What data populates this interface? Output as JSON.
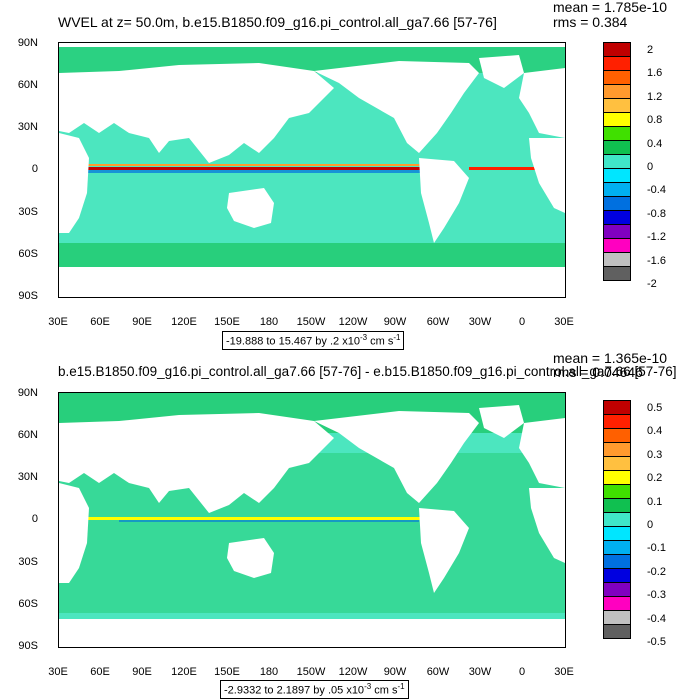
{
  "panel1": {
    "title": "WVEL at z=  50.0m, b.e15.B1850.f09_g16.pi_control.all_ga7.66 [57-76]",
    "mean": "mean = 1.785e-10",
    "rms": "rms = 0.384",
    "range": "-19.888 to 15.467 by .2 x10",
    "range_exp": "-3",
    "range_unit": " cm s",
    "range_unit_exp": "-1",
    "colorbar_labels": [
      "2",
      "1.6",
      "1.2",
      "0.8",
      "0.4",
      "0",
      "-0.4",
      "-0.8",
      "-1.2",
      "-1.6",
      "-2"
    ]
  },
  "panel2": {
    "title": "b.e15.B1850.f09_g16.pi_control.all_ga7.66 [57-76] - e.b15.B1850.f09_g16.pi_control.all_ga7.66 [57-76]",
    "mean": "mean = 1.365e-10",
    "rms": "rms = 0.04646",
    "range": "-2.9332 to 2.1897 by .05 x10",
    "range_exp": "-3",
    "range_unit": " cm s",
    "range_unit_exp": "-1",
    "colorbar_labels": [
      "0.5",
      "0.4",
      "0.3",
      "0.2",
      "0.1",
      "0",
      "-0.1",
      "-0.2",
      "-0.3",
      "-0.4",
      "-0.5"
    ]
  },
  "lat_labels": [
    "90N",
    "60N",
    "30N",
    "0",
    "30S",
    "60S",
    "90S"
  ],
  "lon_labels": [
    "30E",
    "60E",
    "90E",
    "120E",
    "150E",
    "180",
    "150W",
    "120W",
    "90W",
    "60W",
    "30W",
    "0",
    "30E"
  ],
  "colors": {
    "ocean_base": "#4ce6bf",
    "land": "#ffffff",
    "swatches": [
      "#c00000",
      "#ff2000",
      "#ff6000",
      "#ff9a2e",
      "#ffc040",
      "#ffff00",
      "#40e000",
      "#10c050",
      "#40e6c8",
      "#00e6ff",
      "#00b0f0",
      "#0070e0",
      "#0000e0",
      "#8000c0",
      "#ff00c0",
      "#c0c0c0",
      "#606060"
    ]
  }
}
